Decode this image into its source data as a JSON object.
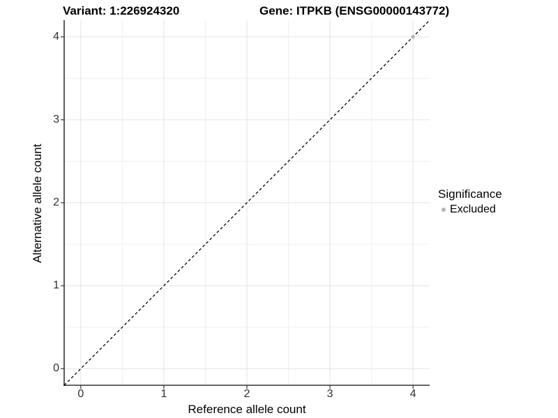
{
  "chart_data": {
    "type": "scatter",
    "title_left": "Variant: 1:226924320",
    "title_right": "Gene: ITPKB (ENSG00000143772)",
    "xlabel": "Reference allele count",
    "ylabel": "Alternative allele count",
    "xlim": [
      -0.2,
      4.2
    ],
    "ylim": [
      -0.2,
      4.2
    ],
    "x_ticks": [
      0,
      1,
      2,
      3,
      4
    ],
    "y_ticks": [
      0,
      1,
      2,
      3,
      4
    ],
    "x_minor_ticks": [
      0.5,
      1.5,
      2.5,
      3.5
    ],
    "y_minor_ticks": [
      0.5,
      1.5,
      2.5,
      3.5
    ],
    "grid": "major+minor",
    "legend_position": "right",
    "series": [
      {
        "name": "Excluded",
        "color": "#b4b4b4",
        "points": [
          {
            "x": 4,
            "y": 4
          }
        ]
      }
    ],
    "reference_line": {
      "kind": "identity",
      "slope": 1,
      "intercept": 0,
      "linestyle": "dashed",
      "color": "#000000"
    },
    "legend": {
      "title": "Significance",
      "items": [
        {
          "label": "Excluded",
          "color": "#b4b4b4"
        }
      ]
    },
    "colors": {
      "background": "#ffffff",
      "major_grid": "#e3e3e3",
      "minor_grid": "#f0f0f0",
      "axis_line": "#333333",
      "tick_mark": "#333333",
      "tick_label": "#303030",
      "point": "#b4b4b4"
    }
  }
}
